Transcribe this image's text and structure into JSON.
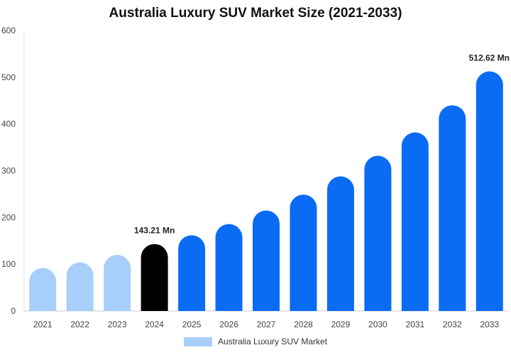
{
  "chart_data": {
    "type": "bar",
    "title": "Australia Luxury SUV Market Size (2021-2033)",
    "xlabel": "",
    "ylabel": "",
    "categories": [
      "2021",
      "2022",
      "2023",
      "2024",
      "2025",
      "2026",
      "2027",
      "2028",
      "2029",
      "2030",
      "2031",
      "2032",
      "2033"
    ],
    "series": [
      {
        "name": "Australia Luxury SUV Market",
        "values": [
          92,
          104,
          120,
          143.21,
          162,
          186,
          215,
          249,
          288,
          332,
          382,
          440,
          512.62
        ]
      }
    ],
    "bar_colors": [
      "#a8cffb",
      "#a8cffb",
      "#a8cffb",
      "#000000",
      "#0a6cf5",
      "#0a6cf5",
      "#0a6cf5",
      "#0a6cf5",
      "#0a6cf5",
      "#0a6cf5",
      "#0a6cf5",
      "#0a6cf5",
      "#0a6cf5"
    ],
    "data_labels": [
      {
        "category": "2024",
        "text": "143.21 Mn"
      },
      {
        "category": "2033",
        "text": "512.62 Mn"
      }
    ],
    "ylim": [
      0,
      600
    ],
    "yticks": [
      "0",
      "100",
      "200",
      "300",
      "400",
      "500",
      "600"
    ],
    "grid": false,
    "legend_position": "bottom",
    "legend_color": "#a8cffb"
  }
}
